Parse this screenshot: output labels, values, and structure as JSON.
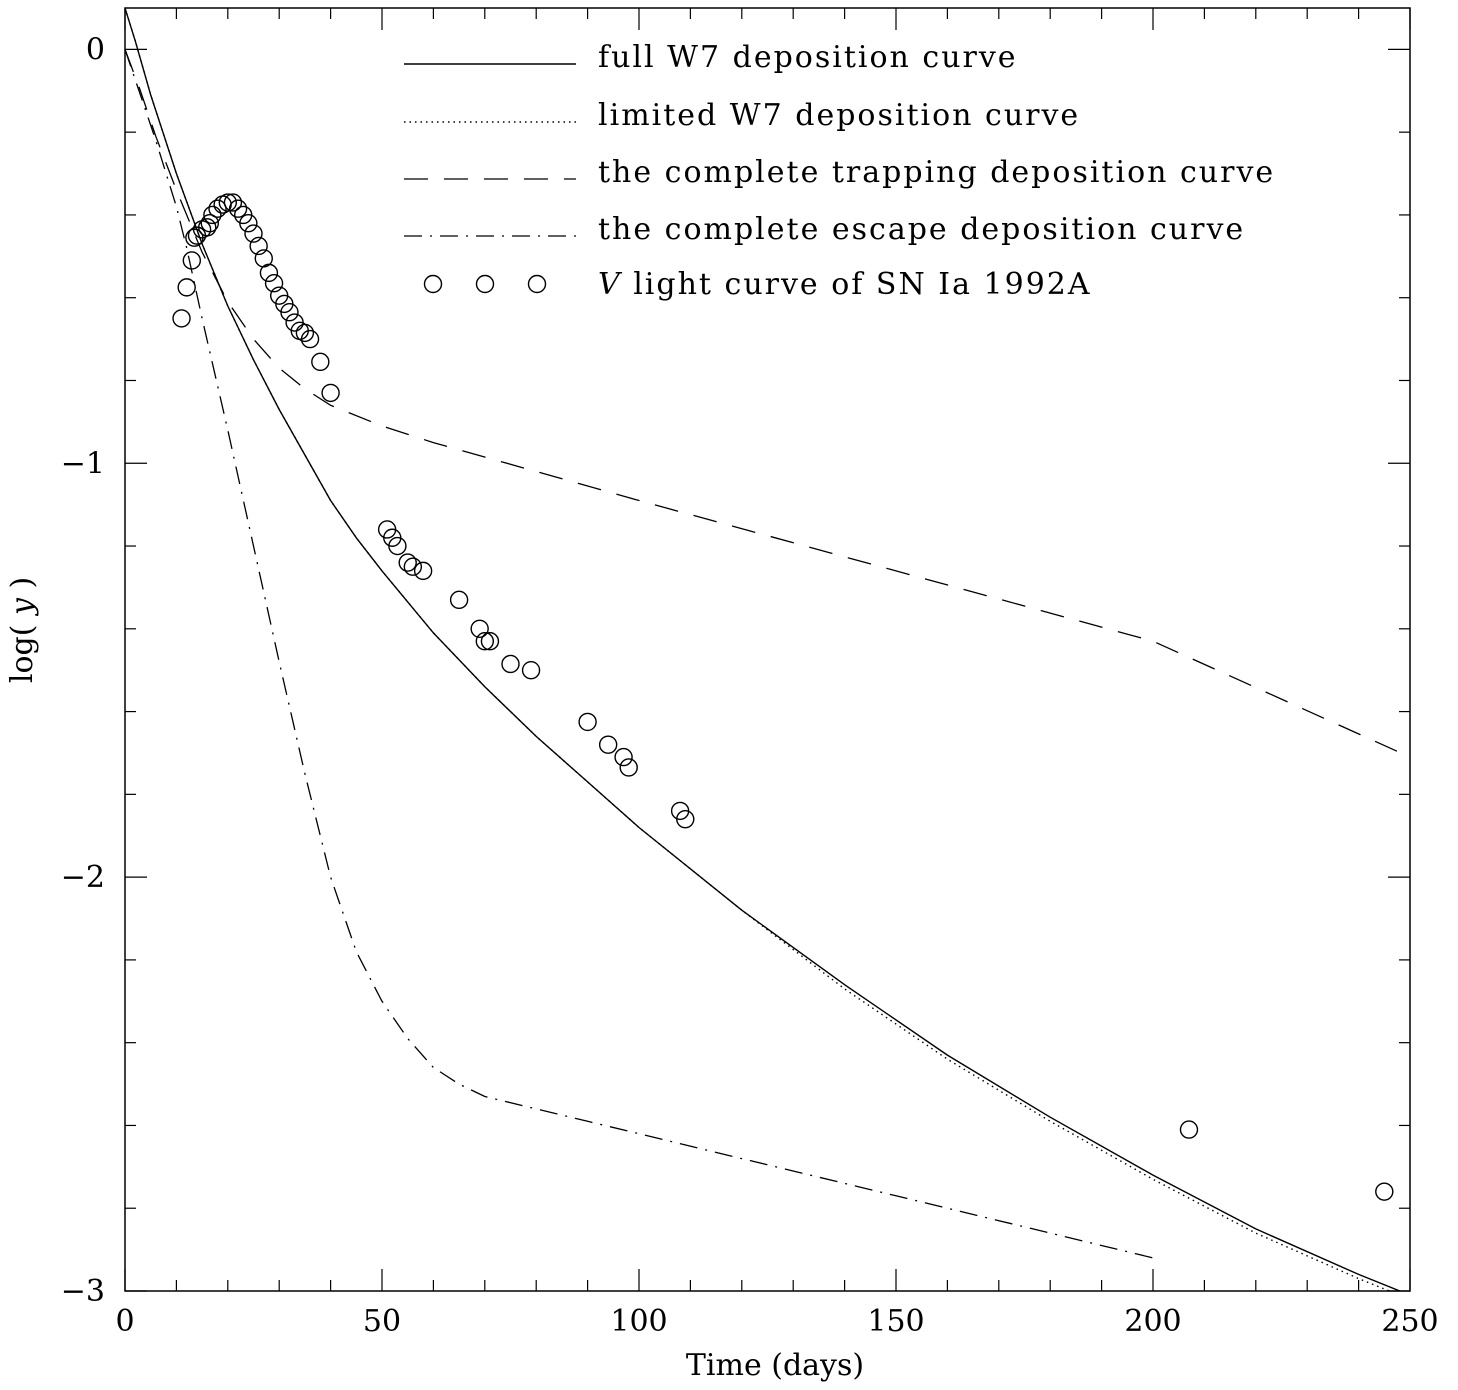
{
  "chart_data": {
    "type": "line",
    "title": "",
    "xlabel": "Time (days)",
    "ylabel_prefix": "log( ",
    "ylabel_var": "y",
    "ylabel_suffix": " )",
    "xlim": [
      0,
      250
    ],
    "ylim": [
      -3,
      0.1
    ],
    "x_ticks_major": [
      0,
      50,
      100,
      150,
      200,
      250
    ],
    "x_tick_labels": [
      "0",
      "50",
      "100",
      "150",
      "200",
      "250"
    ],
    "x_ticks_minor_step": 10,
    "y_ticks_major": [
      0,
      -1,
      -2,
      -3
    ],
    "y_tick_labels": [
      "0",
      "−1",
      "−2",
      "−3"
    ],
    "y_ticks_minor_step": 0.2,
    "grid": false,
    "legend_position": "top-right",
    "series": [
      {
        "name": "full W7 deposition curve",
        "style": "solid",
        "x": [
          0,
          2,
          5,
          10,
          15,
          20,
          25,
          30,
          35,
          40,
          45,
          50,
          60,
          70,
          80,
          90,
          100,
          120,
          140,
          160,
          180,
          200,
          220,
          240,
          250
        ],
        "y": [
          0.1,
          0.02,
          -0.11,
          -0.3,
          -0.47,
          -0.62,
          -0.75,
          -0.87,
          -0.98,
          -1.09,
          -1.18,
          -1.26,
          -1.41,
          -1.54,
          -1.66,
          -1.77,
          -1.88,
          -2.08,
          -2.26,
          -2.43,
          -2.58,
          -2.72,
          -2.85,
          -2.96,
          -3.01
        ]
      },
      {
        "name": "limited W7 deposition curve",
        "style": "dotted",
        "x": [
          0,
          2,
          5,
          10,
          15,
          20,
          25,
          30,
          35,
          40,
          45,
          50,
          60,
          70,
          80,
          90,
          100,
          120,
          140,
          160,
          180,
          200,
          220,
          240,
          250
        ],
        "y": [
          0.1,
          0.02,
          -0.11,
          -0.3,
          -0.47,
          -0.62,
          -0.75,
          -0.87,
          -0.98,
          -1.09,
          -1.18,
          -1.26,
          -1.41,
          -1.54,
          -1.66,
          -1.77,
          -1.88,
          -2.08,
          -2.27,
          -2.44,
          -2.59,
          -2.73,
          -2.86,
          -2.97,
          -3.02
        ]
      },
      {
        "name": "the complete trapping deposition curve",
        "style": "dashed",
        "x": [
          0,
          3,
          6,
          10,
          15,
          20,
          25,
          30,
          35,
          40,
          50,
          60,
          80,
          100,
          150,
          200,
          250
        ],
        "y": [
          0,
          -0.1,
          -0.21,
          -0.34,
          -0.49,
          -0.61,
          -0.7,
          -0.77,
          -0.82,
          -0.86,
          -0.91,
          -0.95,
          -1.02,
          -1.09,
          -1.26,
          -1.43,
          -1.71
        ]
      },
      {
        "name": "the complete escape deposition curve",
        "style": "dashdot",
        "x": [
          0,
          3,
          6,
          10,
          12,
          15,
          20,
          25,
          30,
          35,
          40,
          45,
          50,
          55,
          60,
          65,
          70,
          80,
          90,
          100,
          120,
          150,
          180,
          200
        ],
        "y": [
          0,
          -0.11,
          -0.22,
          -0.38,
          -0.48,
          -0.65,
          -0.92,
          -1.2,
          -1.48,
          -1.75,
          -2.0,
          -2.18,
          -2.3,
          -2.39,
          -2.46,
          -2.5,
          -2.53,
          -2.56,
          -2.59,
          -2.62,
          -2.68,
          -2.77,
          -2.86,
          -2.92
        ]
      },
      {
        "name_italic": "V",
        "name_rest": " light curve of SN Ia 1992A",
        "style": "markers",
        "marker": "open-circle",
        "x": [
          11,
          12,
          13,
          13.5,
          14,
          15,
          16,
          16.5,
          17,
          18,
          19,
          20,
          21,
          22,
          23,
          24,
          25,
          26,
          27,
          28,
          29,
          30,
          31,
          32,
          33,
          34,
          35,
          36,
          38,
          40,
          51,
          52,
          53,
          55,
          56,
          58,
          65,
          69,
          70,
          71,
          75,
          79,
          90,
          94,
          97,
          98,
          108,
          109,
          207,
          245
        ],
        "y": [
          -0.65,
          -0.575,
          -0.51,
          -0.455,
          -0.45,
          -0.435,
          -0.43,
          -0.42,
          -0.4,
          -0.385,
          -0.375,
          -0.37,
          -0.37,
          -0.385,
          -0.4,
          -0.42,
          -0.445,
          -0.475,
          -0.505,
          -0.54,
          -0.565,
          -0.595,
          -0.615,
          -0.635,
          -0.66,
          -0.68,
          -0.685,
          -0.7,
          -0.755,
          -0.83,
          -1.16,
          -1.18,
          -1.2,
          -1.24,
          -1.25,
          -1.26,
          -1.33,
          -1.4,
          -1.43,
          -1.43,
          -1.485,
          -1.5,
          -1.625,
          -1.68,
          -1.71,
          -1.735,
          -1.84,
          -1.86,
          -2.61,
          -2.76
        ]
      }
    ]
  }
}
